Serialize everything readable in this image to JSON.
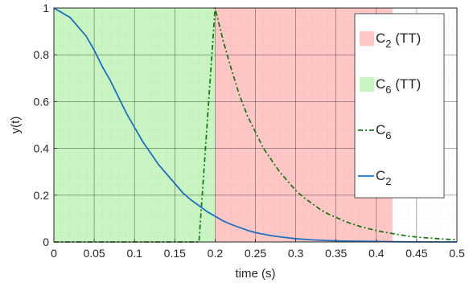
{
  "chart_data": {
    "type": "line",
    "xlabel": "time (s)",
    "ylabel": "y(t)",
    "xlim": [
      0,
      0.5
    ],
    "ylim": [
      0,
      1
    ],
    "xticks": [
      "0",
      "0.05",
      "0.1",
      "0.15",
      "0.2",
      "0.25",
      "0.3",
      "0.35",
      "0.4",
      "0.45",
      "0.5"
    ],
    "yticks": [
      "0",
      "0.2",
      "0.4",
      "0.6",
      "0.8",
      "1"
    ],
    "grid": true,
    "legend_position": "top-right",
    "regions": [
      {
        "name": "C2 (TT)",
        "base": "C",
        "sub": "2",
        "suffix": " (TT)",
        "x0": 0.2,
        "x1": 0.42,
        "color": "#ffc6c6"
      },
      {
        "name": "C6 (TT)",
        "base": "C",
        "sub": "6",
        "suffix": " (TT)",
        "x0": 0.0,
        "x1": 0.2,
        "color": "#c8f5c2"
      }
    ],
    "series": [
      {
        "name": "C6",
        "base": "C",
        "sub": "6",
        "suffix": "",
        "color": "#1a7a1a",
        "dash": "6,3,2,3",
        "x": [
          0,
          0.18,
          0.2,
          0.21,
          0.22,
          0.23,
          0.24,
          0.25,
          0.26,
          0.27,
          0.28,
          0.29,
          0.3,
          0.31,
          0.32,
          0.33,
          0.34,
          0.35,
          0.36,
          0.37,
          0.38,
          0.39,
          0.4,
          0.41,
          0.42,
          0.43,
          0.44,
          0.45,
          0.46,
          0.47,
          0.48,
          0.49,
          0.5
        ],
        "y": [
          0,
          0,
          1,
          0.86,
          0.74,
          0.63,
          0.54,
          0.47,
          0.4,
          0.35,
          0.3,
          0.26,
          0.22,
          0.19,
          0.165,
          0.14,
          0.12,
          0.105,
          0.09,
          0.077,
          0.066,
          0.057,
          0.049,
          0.042,
          0.036,
          0.03,
          0.025,
          0.021,
          0.018,
          0.016,
          0.013,
          0.011,
          0.01
        ]
      },
      {
        "name": "C2",
        "base": "C",
        "sub": "2",
        "suffix": "",
        "color": "#1f6fbf",
        "dash": "",
        "x": [
          0,
          0.01,
          0.02,
          0.03,
          0.04,
          0.05,
          0.06,
          0.07,
          0.08,
          0.09,
          0.1,
          0.11,
          0.12,
          0.13,
          0.14,
          0.15,
          0.16,
          0.17,
          0.18,
          0.19,
          0.2,
          0.21,
          0.22,
          0.23,
          0.24,
          0.25,
          0.26,
          0.27,
          0.28,
          0.29,
          0.3,
          0.32,
          0.34,
          0.36,
          0.38,
          0.4,
          0.42,
          0.45,
          0.5
        ],
        "y": [
          1,
          0.98,
          0.96,
          0.92,
          0.88,
          0.82,
          0.75,
          0.69,
          0.62,
          0.55,
          0.49,
          0.43,
          0.38,
          0.33,
          0.29,
          0.25,
          0.21,
          0.18,
          0.155,
          0.13,
          0.11,
          0.09,
          0.075,
          0.062,
          0.05,
          0.04,
          0.033,
          0.027,
          0.022,
          0.018,
          0.014,
          0.009,
          0.006,
          0.004,
          0.003,
          0.002,
          0.001,
          0.0005,
          0
        ]
      }
    ],
    "legend": [
      {
        "kind": "patch",
        "base": "C",
        "sub": "2",
        "suffix": " (TT)",
        "color": "#ffc6c6"
      },
      {
        "kind": "patch",
        "base": "C",
        "sub": "6",
        "suffix": " (TT)",
        "color": "#c8f5c2"
      },
      {
        "kind": "line",
        "base": "C",
        "sub": "6",
        "suffix": "",
        "color": "#1a7a1a",
        "dash": "6,3,2,3"
      },
      {
        "kind": "line",
        "base": "C",
        "sub": "2",
        "suffix": "",
        "color": "#1f6fbf",
        "dash": ""
      }
    ]
  }
}
